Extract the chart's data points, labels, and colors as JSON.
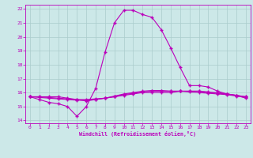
{
  "xlabel": "Windchill (Refroidissement éolien,°C)",
  "background_color": "#cce8e8",
  "grid_color": "#aacccc",
  "line_color": "#bb00bb",
  "xlim": [
    -0.5,
    23.5
  ],
  "ylim": [
    13.8,
    22.3
  ],
  "xticks": [
    0,
    1,
    2,
    3,
    4,
    5,
    6,
    7,
    8,
    9,
    10,
    11,
    12,
    13,
    14,
    15,
    16,
    17,
    18,
    19,
    20,
    21,
    22,
    23
  ],
  "yticks": [
    14,
    15,
    16,
    17,
    18,
    19,
    20,
    21,
    22
  ],
  "series": {
    "arc": [
      15.7,
      15.5,
      15.3,
      15.2,
      15.0,
      14.3,
      15.0,
      16.3,
      18.9,
      21.0,
      21.9,
      21.9,
      21.6,
      21.4,
      20.5,
      19.2,
      17.8,
      16.5,
      16.5,
      16.4,
      16.1,
      15.9,
      15.8,
      15.6
    ],
    "flat1": [
      15.7,
      15.7,
      15.7,
      15.7,
      15.6,
      15.5,
      15.4,
      15.5,
      15.6,
      15.7,
      15.8,
      15.9,
      16.0,
      16.0,
      16.0,
      16.0,
      16.1,
      16.1,
      16.1,
      16.0,
      16.0,
      15.9,
      15.8,
      15.7
    ],
    "flat2": [
      15.7,
      15.7,
      15.65,
      15.6,
      15.55,
      15.5,
      15.5,
      15.55,
      15.6,
      15.7,
      15.85,
      15.95,
      16.05,
      16.1,
      16.1,
      16.1,
      16.1,
      16.1,
      16.1,
      16.05,
      15.95,
      15.9,
      15.8,
      15.7
    ],
    "flat3": [
      15.7,
      15.65,
      15.6,
      15.55,
      15.5,
      15.45,
      15.45,
      15.5,
      15.6,
      15.75,
      15.9,
      16.0,
      16.1,
      16.15,
      16.15,
      16.1,
      16.1,
      16.05,
      16.0,
      15.95,
      15.9,
      15.85,
      15.75,
      15.65
    ]
  }
}
